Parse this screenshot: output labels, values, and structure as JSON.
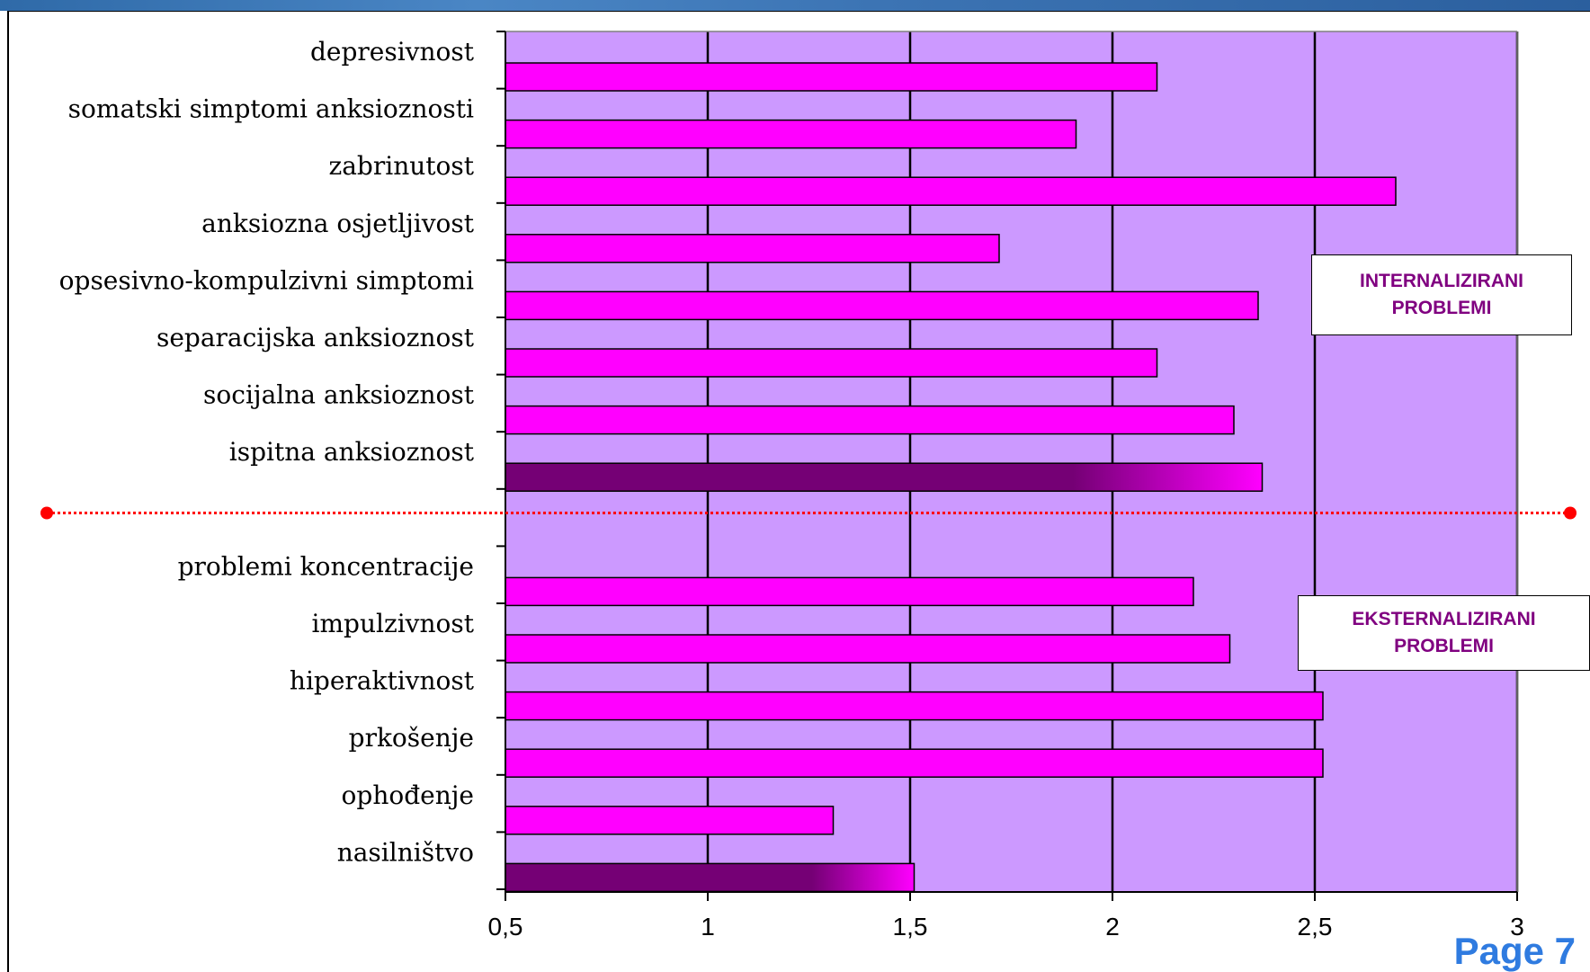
{
  "chart_data": {
    "type": "bar",
    "orientation": "horizontal",
    "categories": [
      "depresivnost",
      "somatski simptomi anksioznosti",
      "zabrinutost",
      "anksiozna osjetljivost",
      "opsesivno-kompulzivni simptomi",
      "separacijska anksioznost",
      "socijalna anksioznost",
      "ispitna anksioznost",
      "",
      "problemi koncentracije",
      "impulzivnost",
      "hiperaktivnost",
      "prkošenje",
      "ophođenje",
      "nasilništvo"
    ],
    "values": [
      2.11,
      1.91,
      2.7,
      1.72,
      2.36,
      2.11,
      2.3,
      2.37,
      null,
      2.2,
      2.29,
      2.52,
      2.52,
      1.31,
      1.51
    ],
    "highlighted": [
      "ispitna anksioznost",
      "nasilništvo"
    ],
    "xlim": [
      0.5,
      3
    ],
    "x_ticks": [
      "0,5",
      "1",
      "1,5",
      "2",
      "2,5",
      "3"
    ],
    "x_tick_values": [
      0.5,
      1,
      1.5,
      2,
      2.5,
      3
    ],
    "grid": "vertical",
    "colors": {
      "plot_background": "#cc99ff",
      "bar": "#ff00ff",
      "bar_highlight": "#750075",
      "separator": "#ff0000"
    },
    "annotations": {
      "internal_label": "INTERNALIZIRANI\nPROBLEMI",
      "external_label": "EKSTERNALIZIRANI\nPROBLEMI"
    }
  },
  "page_number": "Page 7"
}
